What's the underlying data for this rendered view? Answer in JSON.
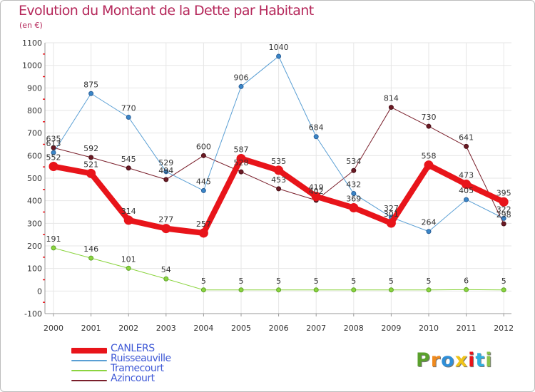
{
  "chart_data": {
    "type": "line",
    "title": "Evolution du Montant de la Dette par Habitant",
    "subtitle": "(en €)",
    "x": [
      "2000",
      "2001",
      "2002",
      "2003",
      "2004",
      "2005",
      "2006",
      "2007",
      "2008",
      "2009",
      "2010",
      "2011",
      "2012"
    ],
    "ylim": [
      -100,
      1100
    ],
    "yticks": [
      "-100",
      "0",
      "100",
      "200",
      "300",
      "400",
      "500",
      "600",
      "700",
      "800",
      "900",
      "1000",
      "1100"
    ],
    "grid": true,
    "legend_position": "bottom-left",
    "series": [
      {
        "name": "CANLERS",
        "color": "#e8141a",
        "values": [
          552,
          521,
          314,
          277,
          257,
          587,
          535,
          419,
          369,
          301,
          558,
          473,
          395
        ],
        "labels": [
          "552",
          "521",
          "314",
          "277",
          "257",
          "587",
          "535",
          "419",
          "369",
          "301",
          "558",
          "473",
          "395"
        ]
      },
      {
        "name": "Ruisseauville",
        "color": "#5a9fd4",
        "values": [
          613,
          875,
          770,
          529,
          445,
          906,
          1040,
          684,
          432,
          327,
          264,
          405,
          322
        ],
        "labels": [
          "613",
          "875",
          "770",
          "529",
          "445",
          "906",
          "1040",
          "684",
          "432",
          "327",
          "264",
          "405",
          "322"
        ]
      },
      {
        "name": "Tramecourt",
        "color": "#8bd43f",
        "values": [
          191,
          146,
          101,
          54,
          5,
          5,
          5,
          5,
          5,
          5,
          5,
          6,
          5
        ],
        "labels": [
          "191",
          "146",
          "101",
          "54",
          "5",
          "5",
          "5",
          "5",
          "5",
          "5",
          "5",
          "6",
          "5"
        ]
      },
      {
        "name": "Azincourt",
        "color": "#7a1f2b",
        "values": [
          635,
          592,
          545,
          494,
          600,
          528,
          453,
          402,
          534,
          814,
          730,
          641,
          298
        ],
        "labels": [
          "635",
          "592",
          "545",
          "494",
          "600",
          "528",
          "453",
          "402",
          "534",
          "814",
          "730",
          "641",
          "298"
        ]
      }
    ]
  },
  "logo": {
    "text": "Proxiti",
    "colors": [
      "#5aa02c",
      "#f08a1d",
      "#2f8fd8",
      "#f0c419",
      "#e8141a",
      "#2fb0e0",
      "#8bc34a"
    ]
  }
}
